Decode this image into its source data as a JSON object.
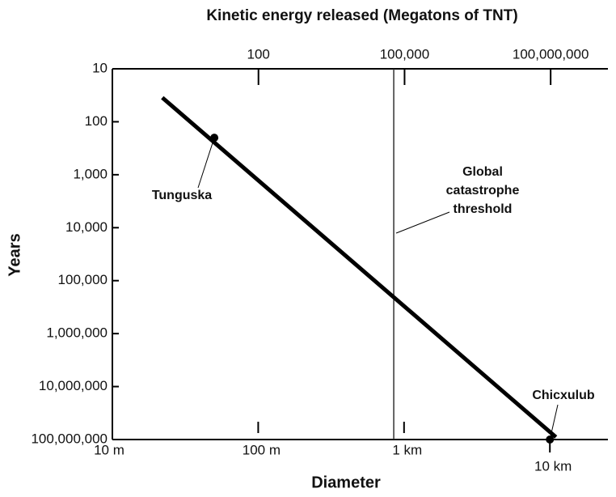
{
  "chart_data": {
    "type": "line",
    "x2label": "Kinetic energy released (Megatons of TNT)",
    "xlabel": "Diameter",
    "ylabel": "Years",
    "xscale": "log",
    "yscale": "log",
    "yinvert": true,
    "xlim": [
      10,
      25000
    ],
    "xticks": [
      {
        "value": 10,
        "label": "10 m"
      },
      {
        "value": 100,
        "label": "100 m"
      },
      {
        "value": 1000,
        "label": "1 km"
      },
      {
        "value": 10000,
        "label": "10 km"
      }
    ],
    "x2lim": [
      0.1,
      1500000000
    ],
    "x2ticks": [
      {
        "value": 100,
        "label": "100"
      },
      {
        "value": 100000,
        "label": "100,000"
      },
      {
        "value": 100000000,
        "label": "100,000,000"
      }
    ],
    "ylim": [
      10,
      100000000
    ],
    "yticks": [
      10,
      100,
      {
        "value": 1000,
        "label": "1,000"
      },
      {
        "value": 10000,
        "label": "10,000"
      },
      {
        "value": 100000,
        "label": "100,000"
      },
      {
        "value": 1000000,
        "label": "1,000,000"
      },
      {
        "value": 10000000,
        "label": "10,000,000"
      },
      {
        "value": 100000000,
        "label": "100,000,000"
      }
    ],
    "series": [
      {
        "color": "#000000",
        "x": [
          22,
          11000
        ],
        "values": [
          35,
          90000000
        ]
      }
    ],
    "points": [
      {
        "label": "Tunguska",
        "x": 50,
        "y": 200
      },
      {
        "label": "Chicxulub",
        "x": 10000,
        "y": 100000000
      }
    ],
    "threshold": {
      "label": [
        "Global",
        "catastrophe",
        "threshold"
      ],
      "x": 850
    }
  }
}
